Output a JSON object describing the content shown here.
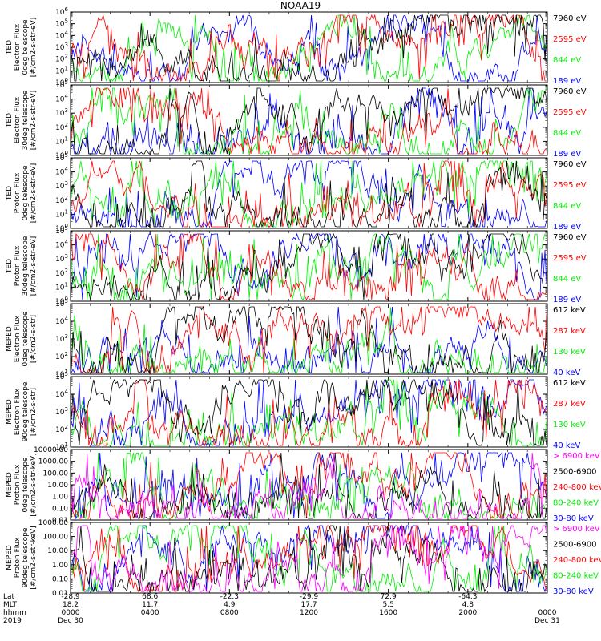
{
  "title": "NOAA19",
  "chart_data": [
    {
      "type": "line",
      "ylabel": [
        "TED",
        "Electron Flux",
        "0deg telescope",
        "[#/cm2-s-str-eV]"
      ],
      "yscale": "log",
      "ylim": [
        1,
        1000000
      ],
      "yticks": [
        "10^0",
        "10^1",
        "10^2",
        "10^3",
        "10^4",
        "10^5",
        "10^6"
      ],
      "legend": [
        {
          "label": "7960 eV",
          "color": "#000000"
        },
        {
          "label": "2595 eV",
          "color": "#ff0000"
        },
        {
          "label": "844 eV",
          "color": "#00ee00"
        },
        {
          "label": "189 eV",
          "color": "#0000ff"
        }
      ]
    },
    {
      "type": "line",
      "ylabel": [
        "TED",
        "Electron Flux",
        "30deg telescope",
        "[#/cm2-s-str-eV]"
      ],
      "yscale": "log",
      "ylim": [
        1,
        100000
      ],
      "yticks": [
        "10^0",
        "10^1",
        "10^2",
        "10^3",
        "10^4",
        "10^5"
      ],
      "legend": [
        {
          "label": "7960 eV",
          "color": "#000000"
        },
        {
          "label": "2595 eV",
          "color": "#ff0000"
        },
        {
          "label": "844 eV",
          "color": "#00ee00"
        },
        {
          "label": "189 eV",
          "color": "#0000ff"
        }
      ]
    },
    {
      "type": "line",
      "ylabel": [
        "TED",
        "Proton Flux",
        "0deg telescope",
        "[#/cm2-s-str-eV]"
      ],
      "yscale": "log",
      "ylim": [
        1,
        100000
      ],
      "yticks": [
        "10^0",
        "10^1",
        "10^2",
        "10^3",
        "10^4",
        "10^5"
      ],
      "legend": [
        {
          "label": "7960 eV",
          "color": "#000000"
        },
        {
          "label": "2595 eV",
          "color": "#ff0000"
        },
        {
          "label": "844 eV",
          "color": "#00ee00"
        },
        {
          "label": "189 eV",
          "color": "#0000ff"
        }
      ]
    },
    {
      "type": "line",
      "ylabel": [
        "TED",
        "Proton Flux",
        "30deg telescope",
        "[#/cm2-s-str-eV]"
      ],
      "yscale": "log",
      "ylim": [
        1,
        100000
      ],
      "yticks": [
        "10^0",
        "10^1",
        "10^2",
        "10^3",
        "10^4",
        "10^5"
      ],
      "legend": [
        {
          "label": "7960 eV",
          "color": "#000000"
        },
        {
          "label": "2595 eV",
          "color": "#ff0000"
        },
        {
          "label": "844 eV",
          "color": "#00ee00"
        },
        {
          "label": "189 eV",
          "color": "#0000ff"
        }
      ]
    },
    {
      "type": "line",
      "ylabel": [
        "MEPED",
        "Electron Flux",
        "0deg telescope",
        "[#/cm2-s-str]"
      ],
      "yscale": "log",
      "ylim": [
        10,
        100000
      ],
      "yticks": [
        "10^1",
        "10^2",
        "10^3",
        "10^4",
        "10^5"
      ],
      "legend": [
        {
          "label": "612 keV",
          "color": "#000000"
        },
        {
          "label": "287 keV",
          "color": "#ff0000"
        },
        {
          "label": "130 keV",
          "color": "#00ee00"
        },
        {
          "label": "40 keV",
          "color": "#0000ff"
        }
      ]
    },
    {
      "type": "line",
      "ylabel": [
        "MEPED",
        "Electron Flux",
        "90deg telescope",
        "[#/cm2-s-str]"
      ],
      "yscale": "log",
      "ylim": [
        10,
        100000
      ],
      "yticks": [
        "10^1",
        "10^2",
        "10^3",
        "10^4",
        "10^5"
      ],
      "legend": [
        {
          "label": "612 keV",
          "color": "#000000"
        },
        {
          "label": "287 keV",
          "color": "#ff0000"
        },
        {
          "label": "130 keV",
          "color": "#00ee00"
        },
        {
          "label": "40 keV",
          "color": "#0000ff"
        }
      ]
    },
    {
      "type": "line",
      "ylabel": [
        "MEPED",
        "Proton Flux",
        "0deg telescope",
        "[#/cm2-s-str-keV]"
      ],
      "yscale": "log",
      "ylim": [
        0.01,
        10000
      ],
      "yticks": [
        "0.01",
        "0.10",
        "1.00",
        "10.00",
        "100.00",
        "1000.00",
        "10000.00"
      ],
      "legend": [
        {
          "label": "> 6900 keV",
          "color": "#ff00ff"
        },
        {
          "label": "2500-6900",
          "color": "#000000"
        },
        {
          "label": "240-800 keV",
          "color": "#ff0000"
        },
        {
          "label": "80-240 keV",
          "color": "#00ee00"
        },
        {
          "label": "30-80 keV",
          "color": "#0000ff"
        }
      ]
    },
    {
      "type": "line",
      "ylabel": [
        "MEPED",
        "Proton Flux",
        "90deg telescope",
        "[#/cm2-s-str-keV]"
      ],
      "yscale": "log",
      "ylim": [
        0.01,
        1000
      ],
      "yticks": [
        "0.01",
        "0.10",
        "1.00",
        "10.00",
        "100.00",
        "1000.00"
      ],
      "legend": [
        {
          "label": "> 6900 keV",
          "color": "#ff00ff"
        },
        {
          "label": "2500-6900",
          "color": "#000000"
        },
        {
          "label": "240-800 keV",
          "color": "#ff0000"
        },
        {
          "label": "80-240 keV",
          "color": "#00ee00"
        },
        {
          "label": "30-80 keV",
          "color": "#0000ff"
        }
      ]
    }
  ],
  "x_axis": {
    "row_labels": [
      "Lat",
      "MLT",
      "hhmm",
      "2019"
    ],
    "x": [
      "0000",
      "0400",
      "0800",
      "1200",
      "1600",
      "2000",
      "0000"
    ],
    "lat": [
      "-28.9",
      "68.6",
      "-22.3",
      "-29.9",
      "72.9",
      "-64.3",
      ""
    ],
    "mlt": [
      "18.2",
      "11.7",
      "4.9",
      "17.7",
      "5.5",
      "4.8",
      ""
    ],
    "hhmm": [
      "0000",
      "0400",
      "0800",
      "1200",
      "1600",
      "2000",
      "0000"
    ],
    "date_start": "Dec 30",
    "date_end": "Dec 31"
  }
}
